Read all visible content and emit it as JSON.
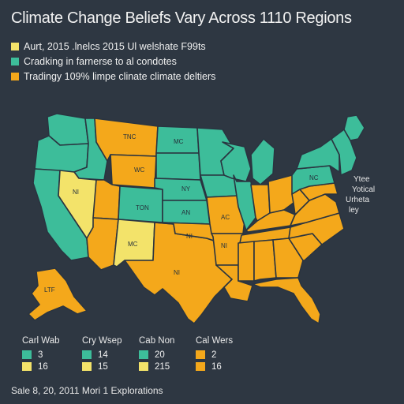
{
  "title": "Climate Change Beliefs Vary Across 1110 Regions",
  "colors": {
    "background": "#2e3742",
    "teal": "#3dbd9a",
    "orange": "#f4a81b",
    "yellow": "#f3e36a",
    "border": "#2a3440"
  },
  "legend": [
    {
      "color": "#f3e36a",
      "text": "Aurt, 2015 .lnelcs 2015 Ul welshate F99ts"
    },
    {
      "color": "#3dbd9a",
      "text": "Cradking in farnerse to al condotes"
    },
    {
      "color": "#f4a81b",
      "text": "Tradingy 109% limpe clinate climate deltiers"
    }
  ],
  "states": [
    {
      "id": "wa",
      "color": "#3dbd9a",
      "label": ""
    },
    {
      "id": "or",
      "color": "#3dbd9a",
      "label": ""
    },
    {
      "id": "ca",
      "color": "#3dbd9a",
      "label": ""
    },
    {
      "id": "id",
      "color": "#3dbd9a",
      "label": ""
    },
    {
      "id": "nv",
      "color": "#f3e36a",
      "label": "NI"
    },
    {
      "id": "mt",
      "color": "#f4a81b",
      "label": "TNC"
    },
    {
      "id": "wy",
      "color": "#f4a81b",
      "label": "WC"
    },
    {
      "id": "ut",
      "color": "#f4a81b",
      "label": ""
    },
    {
      "id": "co",
      "color": "#3dbd9a",
      "label": "TON"
    },
    {
      "id": "az",
      "color": "#f4a81b",
      "label": ""
    },
    {
      "id": "nm",
      "color": "#f3e36a",
      "label": "MC"
    },
    {
      "id": "tx",
      "color": "#f4a81b",
      "label": "NI"
    },
    {
      "id": "nd",
      "color": "#3dbd9a",
      "label": "MC"
    },
    {
      "id": "sd",
      "color": "#3dbd9a",
      "label": ""
    },
    {
      "id": "ne",
      "color": "#3dbd9a",
      "label": "NY"
    },
    {
      "id": "ks",
      "color": "#3dbd9a",
      "label": "AN"
    },
    {
      "id": "ok",
      "color": "#f4a81b",
      "label": "NI"
    },
    {
      "id": "mn",
      "color": "#3dbd9a",
      "label": ""
    },
    {
      "id": "ia",
      "color": "#3dbd9a",
      "label": ""
    },
    {
      "id": "mo",
      "color": "#f4a81b",
      "label": "AC"
    },
    {
      "id": "ar",
      "color": "#f4a81b",
      "label": "NI"
    },
    {
      "id": "la",
      "color": "#f4a81b",
      "label": ""
    },
    {
      "id": "wi",
      "color": "#3dbd9a",
      "label": ""
    },
    {
      "id": "il",
      "color": "#3dbd9a",
      "label": ""
    },
    {
      "id": "mi",
      "color": "#3dbd9a",
      "label": ""
    },
    {
      "id": "in",
      "color": "#f4a81b",
      "label": ""
    },
    {
      "id": "oh",
      "color": "#f4a81b",
      "label": ""
    },
    {
      "id": "ky",
      "color": "#f4a81b",
      "label": ""
    },
    {
      "id": "tn",
      "color": "#f4a81b",
      "label": ""
    },
    {
      "id": "ms",
      "color": "#f4a81b",
      "label": ""
    },
    {
      "id": "al",
      "color": "#f4a81b",
      "label": ""
    },
    {
      "id": "ga",
      "color": "#f4a81b",
      "label": ""
    },
    {
      "id": "fl",
      "color": "#f4a81b",
      "label": ""
    },
    {
      "id": "sc",
      "color": "#f4a81b",
      "label": ""
    },
    {
      "id": "nc",
      "color": "#f4a81b",
      "label": ""
    },
    {
      "id": "va",
      "color": "#f4a81b",
      "label": ""
    },
    {
      "id": "wv",
      "color": "#f4a81b",
      "label": ""
    },
    {
      "id": "pa",
      "color": "#3dbd9a",
      "label": "NC"
    },
    {
      "id": "ny",
      "color": "#3dbd9a",
      "label": ""
    },
    {
      "id": "ne_states",
      "color": "#3dbd9a",
      "label": ""
    },
    {
      "id": "me",
      "color": "#3dbd9a",
      "label": ""
    },
    {
      "id": "md",
      "color": "#f4a81b",
      "label": ""
    },
    {
      "id": "ak",
      "color": "#f4a81b",
      "label": "LTF"
    }
  ],
  "annotations": {
    "east_line1": "Ytee",
    "east_line2": "Yotical",
    "east_line3": "Urheta",
    "east_line4": "ley"
  },
  "bottom_legend": [
    {
      "title": "Carl Wab",
      "rows": [
        {
          "color": "#3dbd9a",
          "value": "3"
        },
        {
          "color": "#f3e36a",
          "value": "16"
        }
      ]
    },
    {
      "title": "Cry Wsep",
      "rows": [
        {
          "color": "#3dbd9a",
          "value": "14"
        },
        {
          "color": "#f3e36a",
          "value": "15"
        }
      ]
    },
    {
      "title": "Cab Non",
      "rows": [
        {
          "color": "#3dbd9a",
          "value": "20"
        },
        {
          "color": "#f3e36a",
          "value": "215"
        }
      ]
    },
    {
      "title": "Cal Wers",
      "rows": [
        {
          "color": "#f4a81b",
          "value": "2"
        },
        {
          "color": "#f4a81b",
          "value": "16"
        }
      ]
    }
  ],
  "footer": "Sale 8, 20, 2011 Mori 1 Explorations"
}
